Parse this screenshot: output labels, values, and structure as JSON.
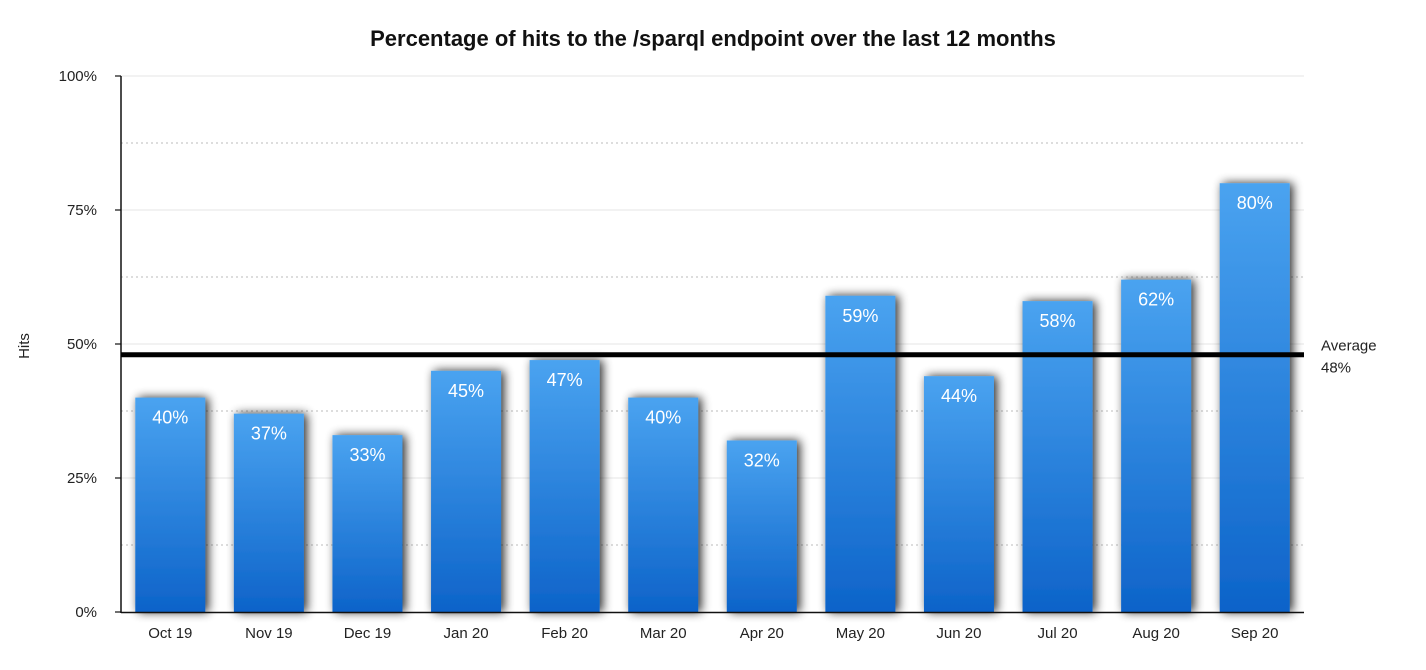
{
  "chart_data": {
    "type": "bar",
    "title": "Percentage of hits to the /sparql endpoint over the last 12 months",
    "xlabel": "",
    "ylabel": "Hits",
    "categories": [
      "Oct 19",
      "Nov 19",
      "Dec 19",
      "Jan 20",
      "Feb 20",
      "Mar 20",
      "Apr 20",
      "May 20",
      "Jun 20",
      "Jul 20",
      "Aug 20",
      "Sep 20"
    ],
    "values": [
      40,
      37,
      33,
      45,
      47,
      40,
      32,
      59,
      44,
      58,
      62,
      80
    ],
    "data_labels": [
      "40%",
      "37%",
      "33%",
      "45%",
      "47%",
      "40%",
      "32%",
      "59%",
      "44%",
      "58%",
      "62%",
      "80%"
    ],
    "ylim": [
      0,
      100
    ],
    "yticks": [
      0,
      25,
      50,
      75,
      100
    ],
    "ytick_labels": [
      "0%",
      "25%",
      "50%",
      "75%",
      "100%"
    ],
    "grid": true,
    "average": {
      "value": 48,
      "label": "Average",
      "value_label": "48%"
    },
    "colors": {
      "bar_top": "#4aa3f0",
      "bar_bottom": "#0d63c9",
      "average_line": "#000000"
    }
  }
}
